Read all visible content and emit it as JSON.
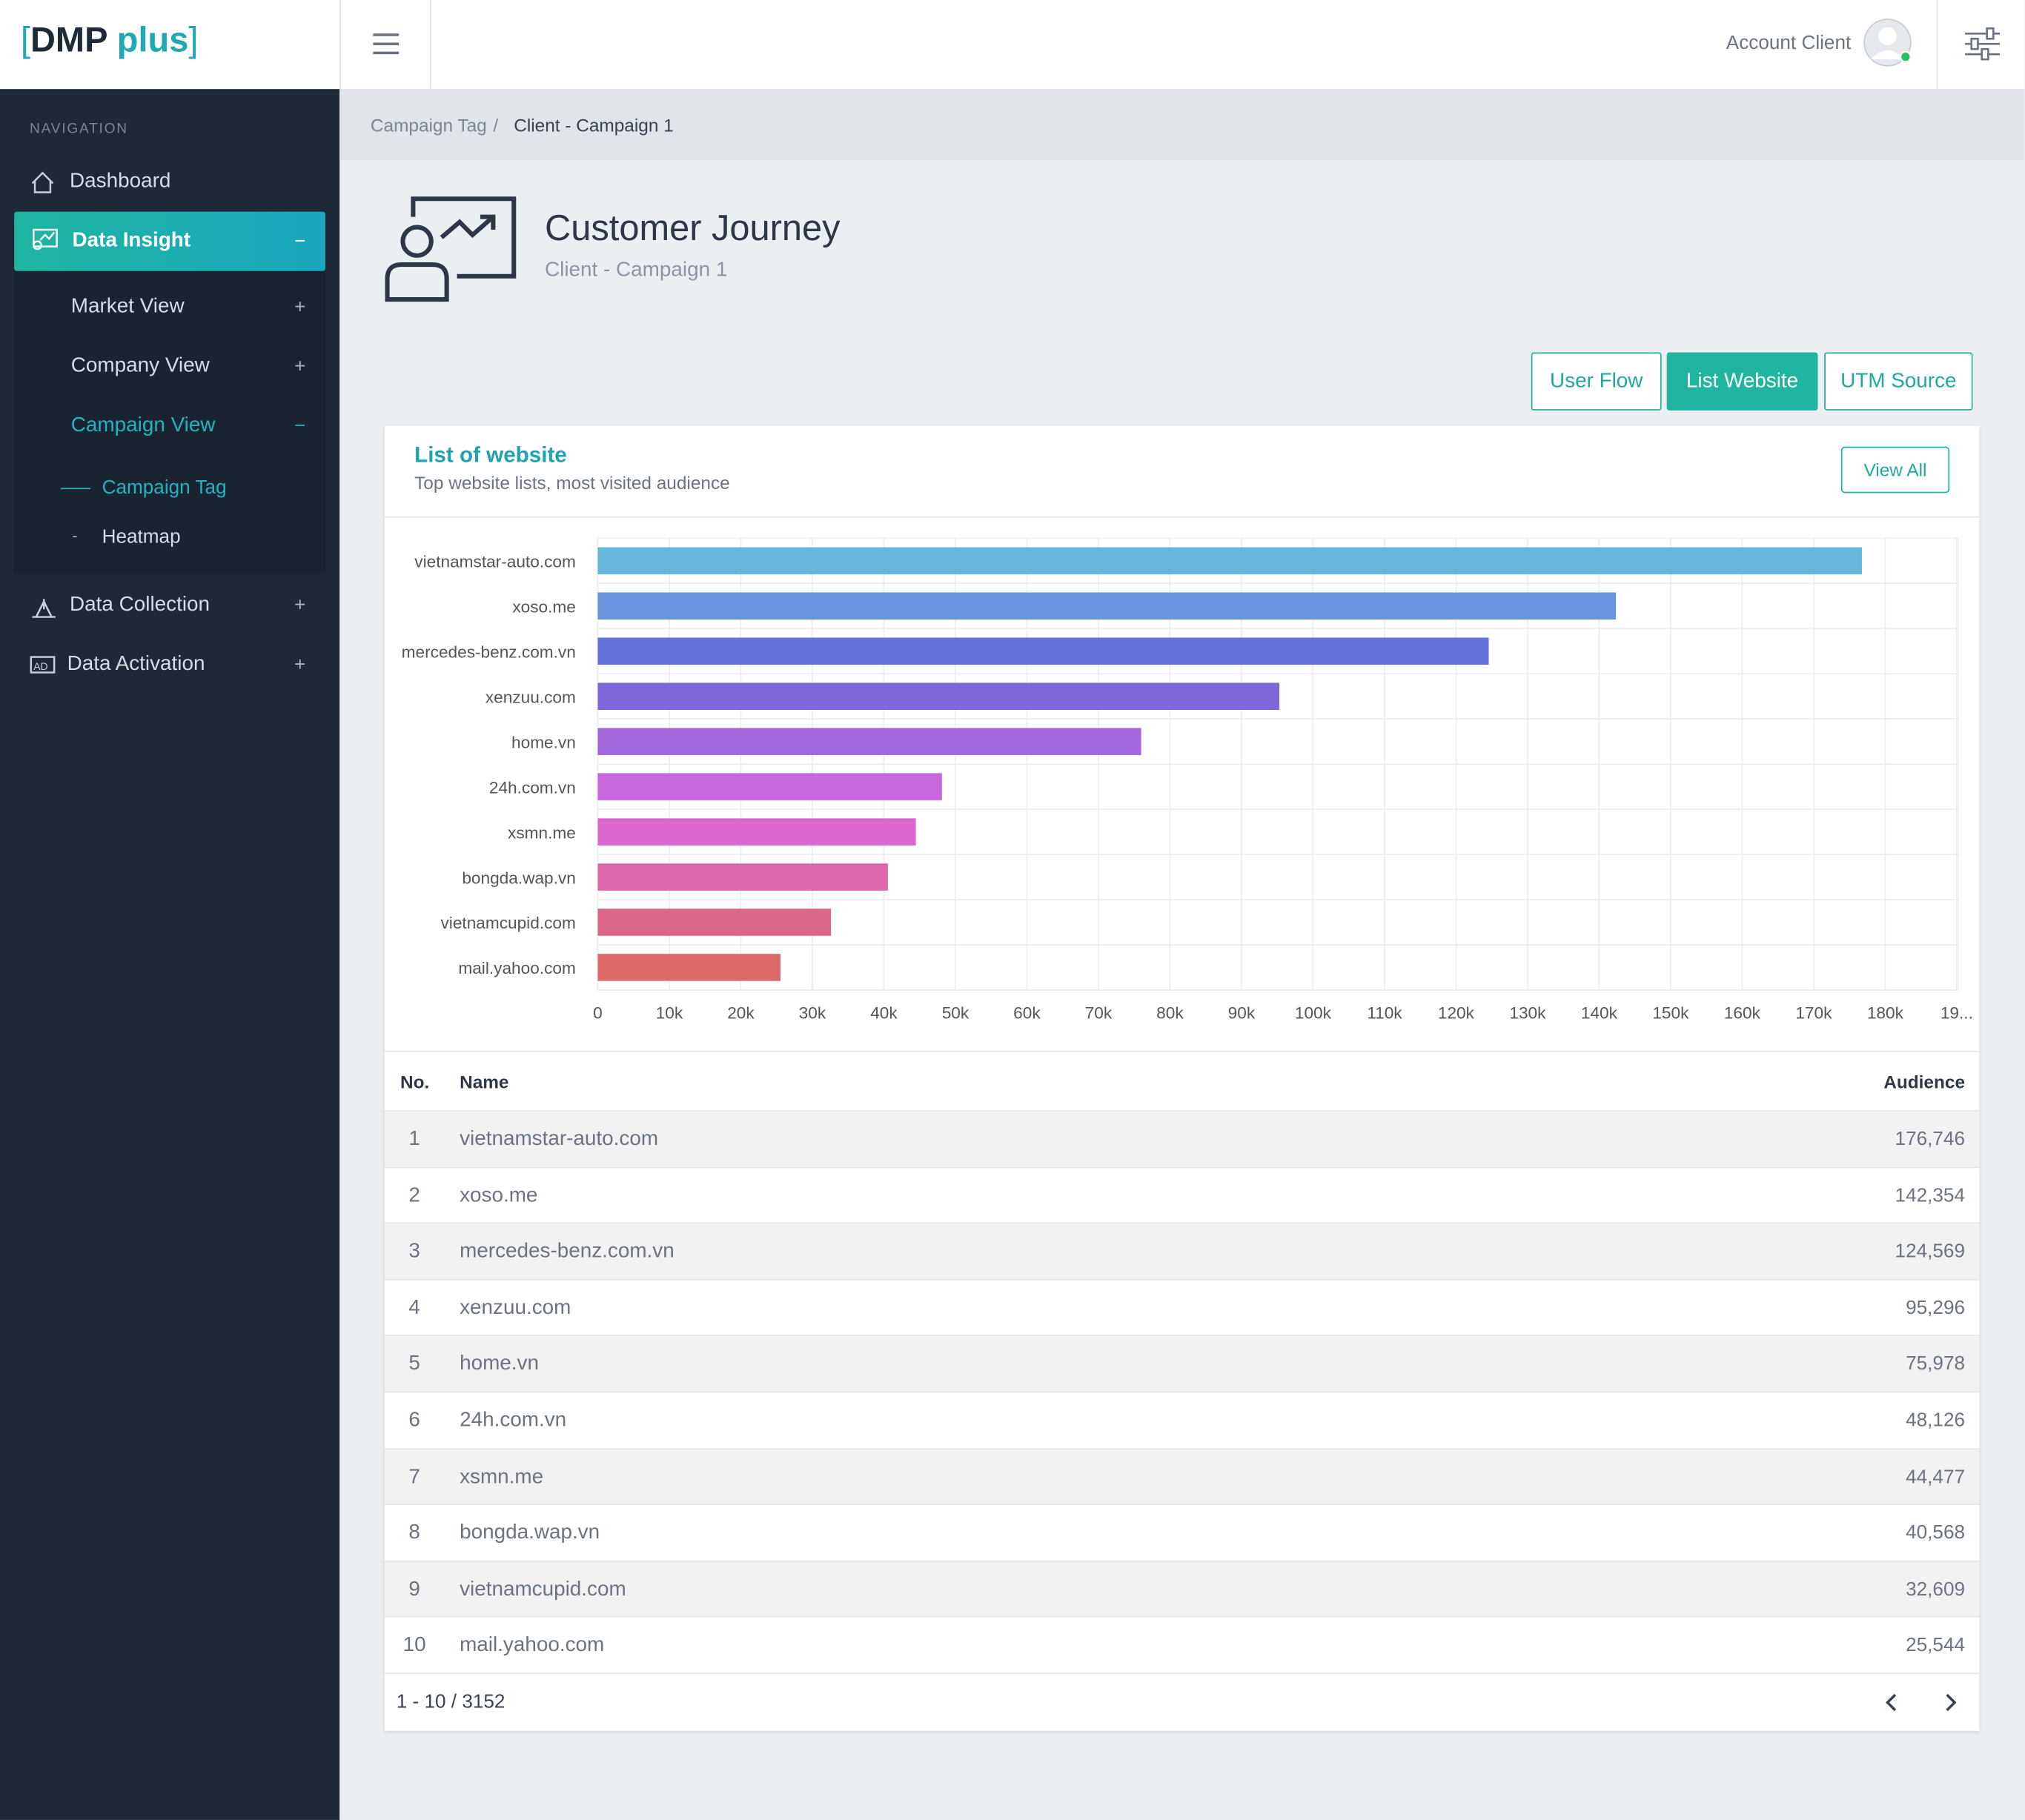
{
  "header": {
    "logo_left": "DMP",
    "logo_right": "plus",
    "account": "Account Client"
  },
  "sidebar": {
    "section": "NAVIGATION",
    "items": [
      "Dashboard",
      "Data Insight",
      "Market View",
      "Company View",
      "Campaign View",
      "Campaign Tag",
      "Heatmap",
      "Data Collection",
      "Data Activation"
    ]
  },
  "breadcrumb": [
    "Campaign Tag",
    "/",
    "Client - Campaign 1"
  ],
  "page": {
    "title": "Customer Journey",
    "subtitle": "Client - Campaign 1"
  },
  "tabs": [
    "User Flow",
    "List Website",
    "UTM Source"
  ],
  "card": {
    "title": "List of website",
    "subtitle": "Top website lists, most visited audience",
    "button": "View All"
  },
  "chart_data": {
    "type": "bar",
    "orientation": "horizontal",
    "categories": [
      "vietnamstar-auto.com",
      "xoso.me",
      "mercedes-benz.com.vn",
      "xenzuu.com",
      "home.vn",
      "24h.com.vn",
      "xsmn.me",
      "bongda.wap.vn",
      "vietnamcupid.com",
      "mail.yahoo.com"
    ],
    "values": [
      176746,
      142354,
      124569,
      95296,
      75978,
      48126,
      44477,
      40568,
      32609,
      25544
    ],
    "colors": [
      "#67b7dc",
      "#6794dc",
      "#6771dc",
      "#8067dc",
      "#a367dc",
      "#c767dc",
      "#dc67ce",
      "#dc67ab",
      "#dc6788",
      "#dc6967"
    ],
    "xlim": [
      0,
      190000
    ],
    "xticks": [
      0,
      {
        "value": 10000,
        "label": "10k"
      },
      {
        "value": 20000,
        "label": "20k"
      },
      {
        "value": 30000,
        "label": "30k"
      },
      {
        "value": 40000,
        "label": "40k"
      },
      {
        "value": 50000,
        "label": "50k"
      },
      {
        "value": 60000,
        "label": "60k"
      },
      {
        "value": 70000,
        "label": "70k"
      },
      {
        "value": 80000,
        "label": "80k"
      },
      {
        "value": 90000,
        "label": "90k"
      },
      {
        "value": 100000,
        "label": "100k"
      },
      {
        "value": 110000,
        "label": "110k"
      },
      {
        "value": 120000,
        "label": "120k"
      },
      {
        "value": 130000,
        "label": "130k"
      },
      {
        "value": 140000,
        "label": "140k"
      },
      {
        "value": 150000,
        "label": "150k"
      },
      {
        "value": 160000,
        "label": "160k"
      },
      {
        "value": 170000,
        "label": "170k"
      },
      {
        "value": 180000,
        "label": "180k"
      },
      {
        "value": 190000,
        "label": "19..."
      }
    ],
    "grid": true
  },
  "table": {
    "columns": [
      "No.",
      "Name",
      "Audience"
    ],
    "rows": [
      [
        "1",
        "vietnamstar-auto.com",
        "176,746"
      ],
      [
        "2",
        "xoso.me",
        "142,354"
      ],
      [
        "3",
        "mercedes-benz.com.vn",
        "124,569"
      ],
      [
        "4",
        "xenzuu.com",
        "95,296"
      ],
      [
        "5",
        "home.vn",
        "75,978"
      ],
      [
        "6",
        "24h.com.vn",
        "48,126"
      ],
      [
        "7",
        "xsmn.me",
        "44,477"
      ],
      [
        "8",
        "bongda.wap.vn",
        "40,568"
      ],
      [
        "9",
        "vietnamcupid.com",
        "32,609"
      ],
      [
        "10",
        "mail.yahoo.com",
        "25,544"
      ]
    ]
  },
  "pagination": "1 - 10 / 3152"
}
